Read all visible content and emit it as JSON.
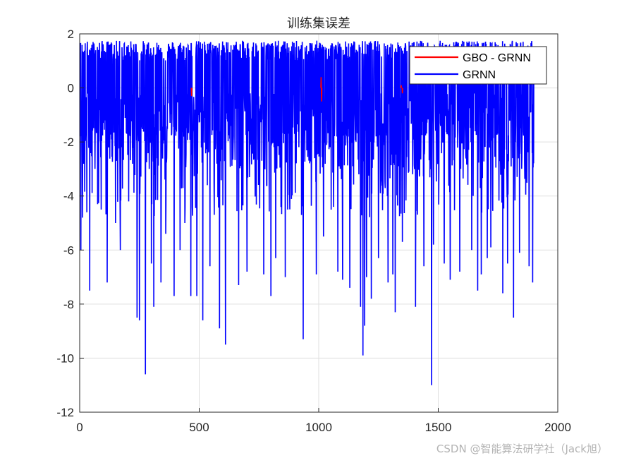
{
  "chart_data": {
    "type": "line",
    "title": "训练集误差",
    "xlabel": "",
    "ylabel": "",
    "xlim": [
      0,
      2000
    ],
    "ylim": [
      -12,
      2
    ],
    "xticks": [
      0,
      500,
      1000,
      1500,
      2000
    ],
    "yticks": [
      2,
      0,
      -2,
      -4,
      -6,
      -8,
      -10,
      -12
    ],
    "grid": true,
    "legend_position": "top-right",
    "x_range": [
      1,
      1900
    ],
    "series": [
      {
        "name": "GBO - GRNN",
        "color": "#ff0000",
        "spikes": [
          [
            468,
            -0.3
          ],
          [
            1010,
            0.4
          ],
          [
            1012,
            -0.5
          ],
          [
            1345,
            0.1
          ],
          [
            1350,
            -0.2
          ]
        ]
      },
      {
        "name": "GRNN",
        "color": "#0000ff",
        "deep_spikes": [
          [
            5,
            -6.0
          ],
          [
            12,
            -4.8
          ],
          [
            30,
            -4.6
          ],
          [
            42,
            -7.5
          ],
          [
            75,
            -4.3
          ],
          [
            90,
            -4.5
          ],
          [
            115,
            -7.2
          ],
          [
            150,
            -5.0
          ],
          [
            170,
            -6.0
          ],
          [
            205,
            -4.2
          ],
          [
            240,
            -8.5
          ],
          [
            250,
            -8.6
          ],
          [
            275,
            -10.6
          ],
          [
            300,
            -6.5
          ],
          [
            310,
            -8.1
          ],
          [
            340,
            -7.2
          ],
          [
            360,
            -5.4
          ],
          [
            395,
            -7.7
          ],
          [
            420,
            -6.0
          ],
          [
            440,
            -5.0
          ],
          [
            465,
            -7.7
          ],
          [
            490,
            -7.7
          ],
          [
            515,
            -8.6
          ],
          [
            545,
            -6.6
          ],
          [
            585,
            -8.9
          ],
          [
            610,
            -9.5
          ],
          [
            665,
            -7.3
          ],
          [
            700,
            -6.8
          ],
          [
            770,
            -6.9
          ],
          [
            800,
            -7.7
          ],
          [
            820,
            -6.3
          ],
          [
            860,
            -7.0
          ],
          [
            870,
            -4.5
          ],
          [
            935,
            -9.3
          ],
          [
            990,
            -6.9
          ],
          [
            1020,
            -5.5
          ],
          [
            1080,
            -6.8
          ],
          [
            1100,
            -7.1
          ],
          [
            1130,
            -7.4
          ],
          [
            1175,
            -8.1
          ],
          [
            1185,
            -9.9
          ],
          [
            1192,
            -8.8
          ],
          [
            1200,
            -7.0
          ],
          [
            1220,
            -7.8
          ],
          [
            1250,
            -6.3
          ],
          [
            1290,
            -7.2
          ],
          [
            1310,
            -6.9
          ],
          [
            1320,
            -8.3
          ],
          [
            1350,
            -5.7
          ],
          [
            1405,
            -8.1
          ],
          [
            1440,
            -6.6
          ],
          [
            1472,
            -11.0
          ],
          [
            1480,
            -5.8
          ],
          [
            1525,
            -6.5
          ],
          [
            1550,
            -7.1
          ],
          [
            1590,
            -6.8
          ],
          [
            1640,
            -6.0
          ],
          [
            1665,
            -7.5
          ],
          [
            1680,
            -6.9
          ],
          [
            1705,
            -6.3
          ],
          [
            1720,
            -5.9
          ],
          [
            1770,
            -7.6
          ],
          [
            1790,
            -6.5
          ],
          [
            1815,
            -8.5
          ],
          [
            1840,
            -6.1
          ],
          [
            1880,
            -6.6
          ],
          [
            1895,
            -7.2
          ]
        ]
      }
    ]
  },
  "watermark": "CSDN @智能算法研学社（Jack旭）"
}
